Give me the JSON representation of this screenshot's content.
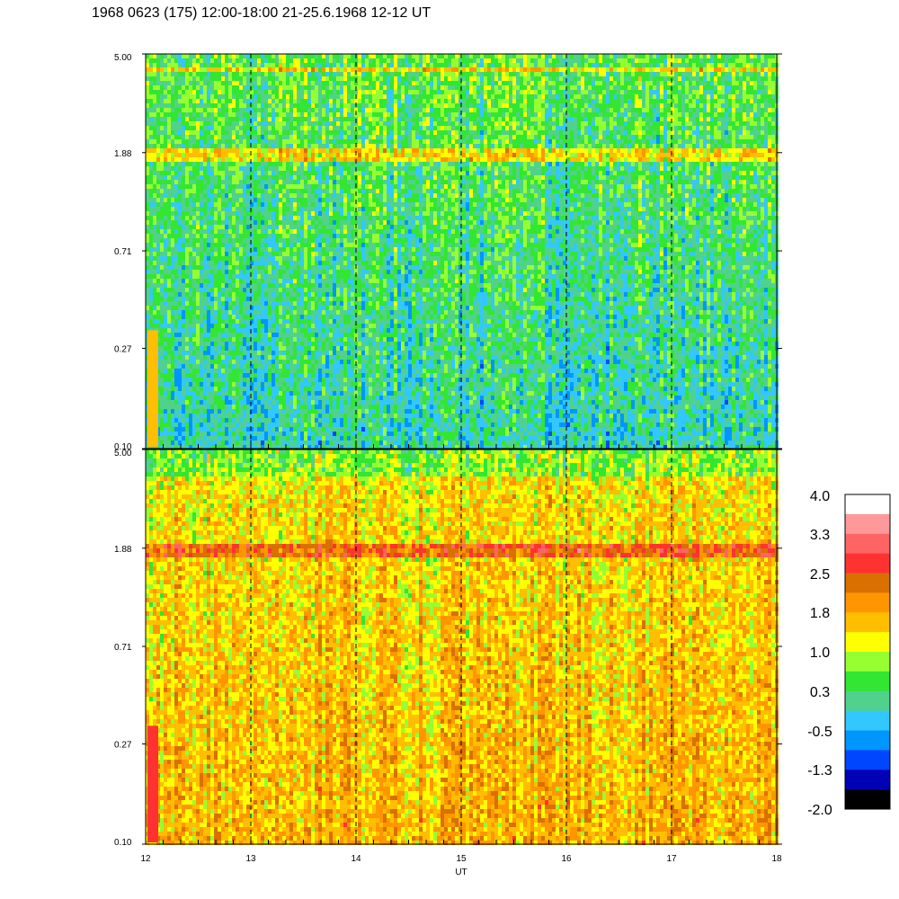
{
  "title": "1968 0623 (175) 12:00-18:00 21-25.6.1968  12-12 UT",
  "chart_data": [
    {
      "type": "heatmap",
      "panel": "top",
      "x_range": [
        12,
        18
      ],
      "y_range": [
        0.1,
        5.0
      ],
      "y_scale": "log",
      "y_ticks": [
        "5.00",
        "1.88",
        "0.71",
        "0.27",
        "0.10"
      ],
      "y_tick_values": [
        5.0,
        1.88,
        0.71,
        0.27,
        0.1
      ],
      "x_ticks": [
        "12",
        "13",
        "14",
        "15",
        "16",
        "17",
        "18"
      ],
      "x_tick_values": [
        12,
        13,
        14,
        15,
        16,
        17,
        18
      ],
      "vertical_dashed_lines_at": [
        13,
        14,
        15,
        16,
        17
      ],
      "dominant_level": 0.3,
      "bright_band_near": 1.88
    },
    {
      "type": "heatmap",
      "panel": "bottom",
      "x_range": [
        12,
        18
      ],
      "y_range": [
        0.1,
        5.0
      ],
      "y_scale": "log",
      "y_ticks": [
        "5.00",
        "1.88",
        "0.71",
        "0.27",
        "0.10"
      ],
      "y_tick_values": [
        5.0,
        1.88,
        0.71,
        0.27,
        0.1
      ],
      "x_ticks": [
        "12",
        "13",
        "14",
        "15",
        "16",
        "17",
        "18"
      ],
      "x_tick_values": [
        12,
        13,
        14,
        15,
        16,
        17,
        18
      ],
      "xlabel": "UT",
      "vertical_dashed_lines_at": [
        13,
        14,
        15,
        16,
        17
      ],
      "dominant_level": 1.5,
      "bright_band_near": 1.88
    }
  ],
  "colorbar": {
    "labels": [
      "4.0",
      "3.3",
      "2.5",
      "1.8",
      "1.0",
      "0.3",
      "-0.5",
      "-1.3",
      "-2.0"
    ],
    "colors": [
      "#ffffff",
      "#ff9999",
      "#ff6464",
      "#ff3232",
      "#d97000",
      "#ff9600",
      "#ffbe00",
      "#ffff00",
      "#96ff32",
      "#32e632",
      "#50d28c",
      "#32c8ff",
      "#0096ff",
      "#0046ff",
      "#0000b4",
      "#000000"
    ]
  }
}
